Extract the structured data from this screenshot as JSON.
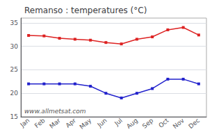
{
  "chart_data": {
    "type": "line",
    "title": "Remanso : temperatures (°C)",
    "categories": [
      "Jan",
      "Feb",
      "Mar",
      "Apr",
      "May",
      "Jun",
      "Jul",
      "Aug",
      "Sep",
      "Oct",
      "Nov",
      "Dec"
    ],
    "series": [
      {
        "color": "#dd2222",
        "marker": "square",
        "values": [
          32.3,
          32.2,
          31.7,
          31.5,
          31.3,
          30.8,
          30.5,
          31.5,
          32.0,
          33.5,
          34.0,
          32.4
        ]
      },
      {
        "color": "#2222cc",
        "marker": "square",
        "values": [
          22.0,
          22.0,
          22.0,
          22.0,
          21.5,
          20.0,
          19.0,
          20.0,
          21.0,
          23.0,
          23.0,
          22.0
        ]
      }
    ],
    "ylim": [
      15,
      36
    ],
    "yticks": [
      15,
      20,
      25,
      30,
      35
    ],
    "grid": true,
    "annotation": "www.allmetsat.com"
  }
}
